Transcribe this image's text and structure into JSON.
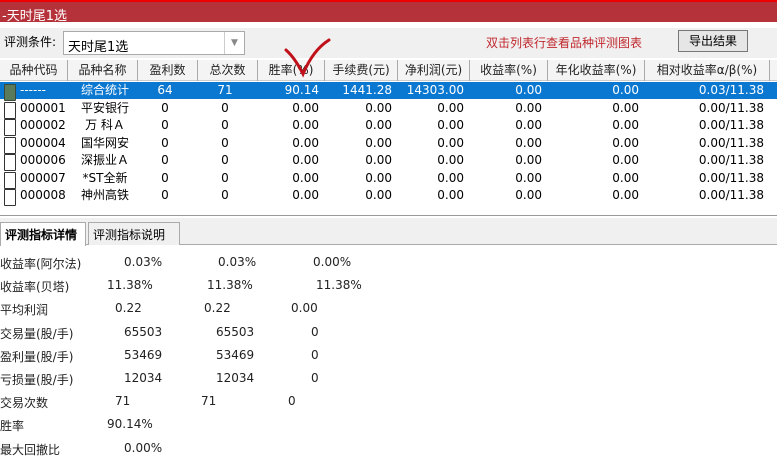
{
  "window": {
    "title": "-天时尾1选"
  },
  "condition": {
    "label": "评测条件:",
    "value": "天时尾1选",
    "hint": "双击列表行查看品种评测图表",
    "export_label": "导出结果"
  },
  "table": {
    "columns": [
      "品种代码",
      "品种名称",
      "盈利数",
      "总次数",
      "胜率(%)",
      "手续费(元)",
      "净利润(元)",
      "收益率(%)",
      "年化收益率(%)",
      "相对收益率α/β(%)"
    ],
    "rows": [
      {
        "code": "------",
        "name": "综合统计",
        "win": "64",
        "total": "71",
        "rate": "90.14",
        "fee": "1441.28",
        "profit": "14303.00",
        "ret": "0.00",
        "annual": "0.00",
        "rel": "0.03/11.38",
        "selected": true
      },
      {
        "code": "000001",
        "name": "平安银行",
        "win": "0",
        "total": "0",
        "rate": "0.00",
        "fee": "0.00",
        "profit": "0.00",
        "ret": "0.00",
        "annual": "0.00",
        "rel": "0.00/11.38"
      },
      {
        "code": "000002",
        "name": "万 科Ａ",
        "win": "0",
        "total": "0",
        "rate": "0.00",
        "fee": "0.00",
        "profit": "0.00",
        "ret": "0.00",
        "annual": "0.00",
        "rel": "0.00/11.38"
      },
      {
        "code": "000004",
        "name": "国华网安",
        "win": "0",
        "total": "0",
        "rate": "0.00",
        "fee": "0.00",
        "profit": "0.00",
        "ret": "0.00",
        "annual": "0.00",
        "rel": "0.00/11.38"
      },
      {
        "code": "000006",
        "name": "深振业Ａ",
        "win": "0",
        "total": "0",
        "rate": "0.00",
        "fee": "0.00",
        "profit": "0.00",
        "ret": "0.00",
        "annual": "0.00",
        "rel": "0.00/11.38"
      },
      {
        "code": "000007",
        "name": "*ST全新",
        "win": "0",
        "total": "0",
        "rate": "0.00",
        "fee": "0.00",
        "profit": "0.00",
        "ret": "0.00",
        "annual": "0.00",
        "rel": "0.00/11.38"
      },
      {
        "code": "000008",
        "name": "神州高铁",
        "win": "0",
        "total": "0",
        "rate": "0.00",
        "fee": "0.00",
        "profit": "0.00",
        "ret": "0.00",
        "annual": "0.00",
        "rel": "0.00/11.38"
      }
    ]
  },
  "tabs": [
    "评测指标详情",
    "评测指标说明"
  ],
  "details": [
    {
      "label": "收益率(阿尔法)",
      "values": [
        "0.03%",
        "0.03%",
        "0.00%"
      ]
    },
    {
      "label": "收益率(贝塔)",
      "values": [
        "11.38%",
        "11.38%",
        "11.38%"
      ]
    },
    {
      "label": "平均利润",
      "values": [
        "0.22",
        "0.22",
        "0.00"
      ]
    },
    {
      "label": "交易量(股/手)",
      "values": [
        "65503",
        "65503",
        "0"
      ]
    },
    {
      "label": "盈利量(股/手)",
      "values": [
        "53469",
        "53469",
        "0"
      ]
    },
    {
      "label": "亏损量(股/手)",
      "values": [
        "12034",
        "12034",
        "0"
      ]
    },
    {
      "label": "交易次数",
      "values": [
        "71",
        "71",
        "0"
      ]
    },
    {
      "label": "胜率",
      "values": [
        "90.14%"
      ]
    },
    {
      "label": "最大回撤比",
      "values": [
        "0.00%"
      ]
    }
  ],
  "colors": {
    "title_bar": "#b5323a",
    "selection": "#0a78d0",
    "hint": "#c0282e",
    "annotation_check": "#c0101a"
  }
}
